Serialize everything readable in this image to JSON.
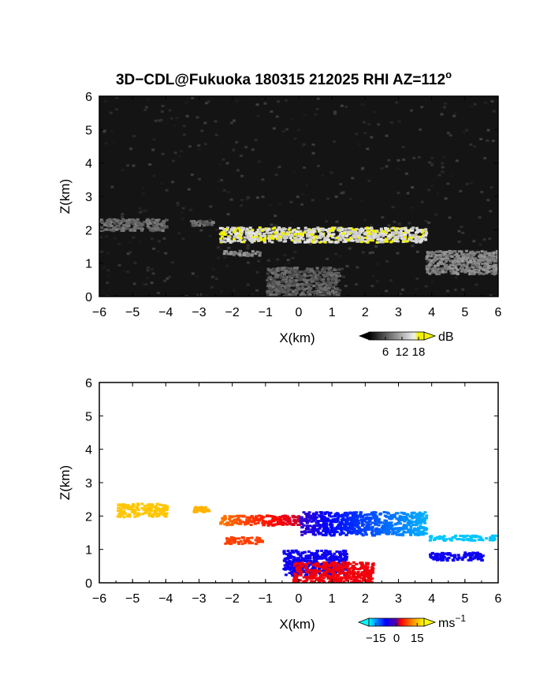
{
  "figure": {
    "title": "3D−CDL@Fukuoka 180315 212025 RHI AZ=112",
    "title_superscript": "o"
  },
  "chart_data": [
    {
      "type": "heatmap",
      "variable": "backscatter intensity",
      "xlabel": "X(km)",
      "ylabel": "Z(km)",
      "xlim": [
        -6,
        6
      ],
      "ylim": [
        0,
        6
      ],
      "xticks": [
        "−6",
        "−5",
        "−4",
        "−3",
        "−2",
        "−1",
        "0",
        "1",
        "2",
        "3",
        "4",
        "5",
        "6"
      ],
      "yticks": [
        "0",
        "1",
        "2",
        "3",
        "4",
        "5",
        "6"
      ],
      "background": "#141414",
      "colorbar": {
        "unit": "dB",
        "ticks": [
          "6",
          "12",
          "18"
        ],
        "range": [
          0,
          20
        ],
        "colors": [
          "#000000",
          "#ffffff",
          "#f2f200"
        ]
      },
      "features": [
        {
          "name": "main cloud layer",
          "x": [
            -2.4,
            3.8
          ],
          "z": [
            1.65,
            2.1
          ],
          "value_db": 19
        },
        {
          "name": "scatter near -5 km",
          "x": [
            -6,
            -4
          ],
          "z": [
            2.0,
            2.35
          ],
          "value_db": 10
        },
        {
          "name": "scatter near -3 km",
          "x": [
            -3.3,
            -2.6
          ],
          "z": [
            2.15,
            2.3
          ],
          "value_db": 10
        },
        {
          "name": "lower layer",
          "x": [
            -2.3,
            -1.2
          ],
          "z": [
            1.25,
            1.4
          ],
          "value_db": 12
        },
        {
          "name": "near-range ground clutter",
          "x": [
            -1.0,
            1.2
          ],
          "z": [
            0,
            0.9
          ],
          "value_db": 9
        },
        {
          "name": "far scatter",
          "x": [
            3.8,
            6.0
          ],
          "z": [
            0.7,
            1.4
          ],
          "value_db": 12
        }
      ]
    },
    {
      "type": "heatmap",
      "variable": "Doppler velocity",
      "xlabel": "X(km)",
      "ylabel": "Z(km)",
      "xlim": [
        -6,
        6
      ],
      "ylim": [
        0,
        6
      ],
      "xticks": [
        "−6",
        "−5",
        "−4",
        "−3",
        "−2",
        "−1",
        "0",
        "1",
        "2",
        "3",
        "4",
        "5",
        "6"
      ],
      "yticks": [
        "0",
        "1",
        "2",
        "3",
        "4",
        "5",
        "6"
      ],
      "background": "#ffffff",
      "colorbar": {
        "unit": "ms",
        "unit_superscript": "−1",
        "ticks": [
          "−15",
          "0",
          "15"
        ],
        "range": [
          -20,
          20
        ],
        "colors": [
          "#00ffff",
          "#0000ff",
          "#ff0000",
          "#ffff00"
        ]
      },
      "features": [
        {
          "name": "upper left scatter",
          "x": [
            -5.5,
            -4.0
          ],
          "z": [
            2.0,
            2.4
          ],
          "velocity": 17
        },
        {
          "name": "scatter near -3 km",
          "x": [
            -3.2,
            -2.7
          ],
          "z": [
            2.15,
            2.3
          ],
          "velocity": 16
        },
        {
          "name": "main layer west",
          "x": [
            -2.4,
            0
          ],
          "z": [
            1.75,
            2.05
          ],
          "velocity_start": 13,
          "velocity_end": 4
        },
        {
          "name": "main layer east",
          "x": [
            0,
            3.8
          ],
          "z": [
            1.45,
            2.15
          ],
          "velocity_start": -4,
          "velocity_end": -16
        },
        {
          "name": "far east layer",
          "x": [
            3.8,
            5.9
          ],
          "z": [
            1.3,
            1.45
          ],
          "velocity": -17
        },
        {
          "name": "lower layer",
          "x": [
            -2.3,
            -1.1
          ],
          "z": [
            1.2,
            1.4
          ],
          "velocity": 10
        },
        {
          "name": "receding low-level blob",
          "x": [
            -0.5,
            1.4
          ],
          "z": [
            0.25,
            1.0
          ],
          "velocity": -6
        },
        {
          "name": "approaching low-level blob",
          "x": [
            -0.2,
            2.2
          ],
          "z": [
            0.05,
            0.65
          ],
          "velocity": 6
        },
        {
          "name": "far east blobs",
          "x": [
            3.9,
            5.5
          ],
          "z": [
            0.7,
            0.95
          ],
          "velocity": -6
        }
      ]
    }
  ]
}
